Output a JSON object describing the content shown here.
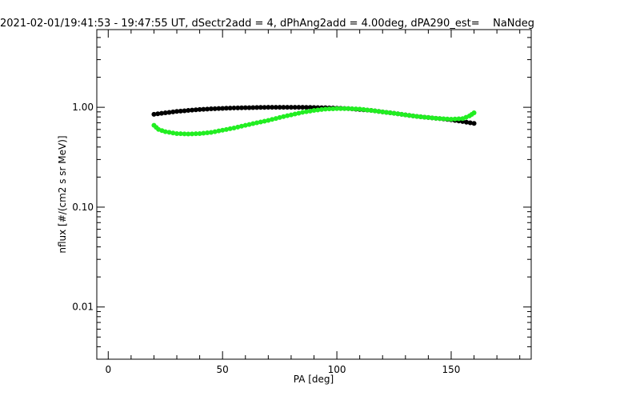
{
  "chart_data": {
    "type": "scatter",
    "title": "2021-02-01/19:41:53 - 19:47:55 UT, dSectr2add = 4, dPhAng2add = 4.00deg, dPA290_est=    NaNdeg",
    "xlabel": "PA [deg]",
    "ylabel": "nflux [#/(cm2 s sr MeV)]",
    "xlim": [
      -5,
      185
    ],
    "ylim": [
      0.003,
      6
    ],
    "yscale": "log",
    "grid": false,
    "x_ticks": [
      {
        "value": 0,
        "label": "0"
      },
      {
        "value": 50,
        "label": "50"
      },
      {
        "value": 100,
        "label": "100"
      },
      {
        "value": 150,
        "label": "150"
      }
    ],
    "y_ticks": [
      {
        "value": 0.01,
        "label": "0.01"
      },
      {
        "value": 0.1,
        "label": "0.10"
      },
      {
        "value": 1.0,
        "label": "1.00"
      }
    ],
    "series": [
      {
        "color": "#000000",
        "x": [
          20,
          25,
          30,
          35,
          40,
          45,
          50,
          55,
          60,
          65,
          70,
          75,
          80,
          85,
          90,
          95,
          100,
          105,
          110,
          115,
          120,
          125,
          130,
          135,
          140,
          145,
          150,
          155,
          160
        ],
        "y": [
          0.85,
          0.88,
          0.91,
          0.93,
          0.95,
          0.965,
          0.975,
          0.985,
          0.99,
          0.995,
          1.0,
          1.0,
          1.0,
          1.0,
          0.995,
          0.99,
          0.98,
          0.97,
          0.95,
          0.93,
          0.9,
          0.87,
          0.84,
          0.81,
          0.79,
          0.77,
          0.75,
          0.72,
          0.69
        ]
      },
      {
        "color": "#22ee22",
        "x": [
          20,
          22,
          25,
          30,
          35,
          40,
          45,
          50,
          55,
          60,
          65,
          70,
          75,
          80,
          85,
          90,
          95,
          100,
          105,
          110,
          115,
          120,
          125,
          130,
          135,
          140,
          145,
          150,
          155,
          158,
          160
        ],
        "y": [
          0.66,
          0.6,
          0.57,
          0.545,
          0.54,
          0.545,
          0.56,
          0.59,
          0.62,
          0.66,
          0.7,
          0.74,
          0.79,
          0.84,
          0.89,
          0.93,
          0.96,
          0.97,
          0.97,
          0.96,
          0.93,
          0.9,
          0.87,
          0.84,
          0.81,
          0.79,
          0.77,
          0.76,
          0.77,
          0.82,
          0.88
        ]
      }
    ]
  }
}
